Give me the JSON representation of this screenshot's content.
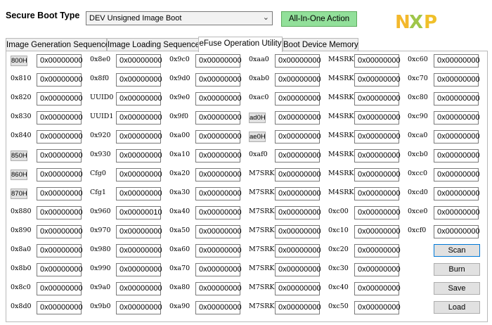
{
  "header": {
    "boot_type_label": "Secure Boot Type",
    "boot_type_value": "DEV Unsigned Image Boot",
    "action_button": "All-In-One Action",
    "logo_text": "NXP"
  },
  "tabs": [
    {
      "label": "Image Generation Sequence",
      "active": false
    },
    {
      "label": "Image Loading Sequence",
      "active": false
    },
    {
      "label": "eFuse Operation Utility",
      "active": true
    },
    {
      "label": "Boot Device Memory",
      "active": false
    }
  ],
  "columns": [
    {
      "rows": [
        {
          "label": "800H",
          "button": true,
          "value": "0x00000000"
        },
        {
          "label": "0x810",
          "button": false,
          "value": "0x00000000"
        },
        {
          "label": "0x820",
          "button": false,
          "value": "0x00000000"
        },
        {
          "label": "0x830",
          "button": false,
          "value": "0x00000000"
        },
        {
          "label": "0x840",
          "button": false,
          "value": "0x00000000"
        },
        {
          "label": "850H",
          "button": true,
          "value": "0x00000000"
        },
        {
          "label": "860H",
          "button": true,
          "value": "0x00000000"
        },
        {
          "label": "870H",
          "button": true,
          "value": "0x00000000"
        },
        {
          "label": "0x880",
          "button": false,
          "value": "0x00000000"
        },
        {
          "label": "0x890",
          "button": false,
          "value": "0x00000000"
        },
        {
          "label": "0x8a0",
          "button": false,
          "value": "0x00000000"
        },
        {
          "label": "0x8b0",
          "button": false,
          "value": "0x00000000"
        },
        {
          "label": "0x8c0",
          "button": false,
          "value": "0x00000000"
        },
        {
          "label": "0x8d0",
          "button": false,
          "value": "0x00000000"
        }
      ]
    },
    {
      "rows": [
        {
          "label": "0x8e0",
          "button": false,
          "value": "0x00000000"
        },
        {
          "label": "0x8f0",
          "button": false,
          "value": "0x00000000"
        },
        {
          "label": "UUID0",
          "button": false,
          "value": "0x00000000"
        },
        {
          "label": "UUID1",
          "button": false,
          "value": "0x00000000"
        },
        {
          "label": "0x920",
          "button": false,
          "value": "0x00000000"
        },
        {
          "label": "0x930",
          "button": false,
          "value": "0x00000000"
        },
        {
          "label": "Cfg0",
          "button": false,
          "value": "0x00000000"
        },
        {
          "label": "Cfg1",
          "button": false,
          "value": "0x00000000"
        },
        {
          "label": "0x960",
          "button": false,
          "value": "0x00000010"
        },
        {
          "label": "0x970",
          "button": false,
          "value": "0x00000000"
        },
        {
          "label": "0x980",
          "button": false,
          "value": "0x00000000"
        },
        {
          "label": "0x990",
          "button": false,
          "value": "0x00000000"
        },
        {
          "label": "0x9a0",
          "button": false,
          "value": "0x00000000"
        },
        {
          "label": "0x9b0",
          "button": false,
          "value": "0x00000000"
        }
      ]
    },
    {
      "rows": [
        {
          "label": "0x9c0",
          "button": false,
          "value": "0x00000000"
        },
        {
          "label": "0x9d0",
          "button": false,
          "value": "0x00000000"
        },
        {
          "label": "0x9e0",
          "button": false,
          "value": "0x00000000"
        },
        {
          "label": "0x9f0",
          "button": false,
          "value": "0x00000000"
        },
        {
          "label": "0xa00",
          "button": false,
          "value": "0x00000000"
        },
        {
          "label": "0xa10",
          "button": false,
          "value": "0x00000000"
        },
        {
          "label": "0xa20",
          "button": false,
          "value": "0x00000000"
        },
        {
          "label": "0xa30",
          "button": false,
          "value": "0x00000000"
        },
        {
          "label": "0xa40",
          "button": false,
          "value": "0x00000000"
        },
        {
          "label": "0xa50",
          "button": false,
          "value": "0x00000000"
        },
        {
          "label": "0xa60",
          "button": false,
          "value": "0x00000000"
        },
        {
          "label": "0xa70",
          "button": false,
          "value": "0x00000000"
        },
        {
          "label": "0xa80",
          "button": false,
          "value": "0x00000000"
        },
        {
          "label": "0xa90",
          "button": false,
          "value": "0x00000000"
        }
      ]
    },
    {
      "rows": [
        {
          "label": "0xaa0",
          "button": false,
          "value": "0x00000000"
        },
        {
          "label": "0xab0",
          "button": false,
          "value": "0x00000000"
        },
        {
          "label": "0xac0",
          "button": false,
          "value": "0x00000000"
        },
        {
          "label": "ad0H",
          "button": true,
          "value": "0x00000000"
        },
        {
          "label": "ae0H",
          "button": true,
          "value": "0x00000000"
        },
        {
          "label": "0xaf0",
          "button": false,
          "value": "0x00000000"
        },
        {
          "label": "M7SRK",
          "button": false,
          "value": "0x00000000"
        },
        {
          "label": "M7SRK",
          "button": false,
          "value": "0x00000000"
        },
        {
          "label": "M7SRK",
          "button": false,
          "value": "0x00000000"
        },
        {
          "label": "M7SRK",
          "button": false,
          "value": "0x00000000"
        },
        {
          "label": "M7SRK",
          "button": false,
          "value": "0x00000000"
        },
        {
          "label": "M7SRK",
          "button": false,
          "value": "0x00000000"
        },
        {
          "label": "M7SRK",
          "button": false,
          "value": "0x00000000"
        },
        {
          "label": "M7SRK",
          "button": false,
          "value": "0x00000000"
        }
      ]
    },
    {
      "rows": [
        {
          "label": "M4SRK",
          "button": false,
          "value": "0x00000000"
        },
        {
          "label": "M4SRK",
          "button": false,
          "value": "0x00000000"
        },
        {
          "label": "M4SRK",
          "button": false,
          "value": "0x00000000"
        },
        {
          "label": "M4SRK",
          "button": false,
          "value": "0x00000000"
        },
        {
          "label": "M4SRK",
          "button": false,
          "value": "0x00000000"
        },
        {
          "label": "M4SRK",
          "button": false,
          "value": "0x00000000"
        },
        {
          "label": "M4SRK",
          "button": false,
          "value": "0x00000000"
        },
        {
          "label": "M4SRK",
          "button": false,
          "value": "0x00000000"
        },
        {
          "label": "0xc00",
          "button": false,
          "value": "0x00000000"
        },
        {
          "label": "0xc10",
          "button": false,
          "value": "0x00000000"
        },
        {
          "label": "0xc20",
          "button": false,
          "value": "0x00000000"
        },
        {
          "label": "0xc30",
          "button": false,
          "value": "0x00000000"
        },
        {
          "label": "0xc40",
          "button": false,
          "value": "0x00000000"
        },
        {
          "label": "0xc50",
          "button": false,
          "value": "0x00000000"
        }
      ]
    },
    {
      "rows": [
        {
          "label": "0xc60",
          "button": false,
          "value": "0x00000000"
        },
        {
          "label": "0xc70",
          "button": false,
          "value": "0x00000000"
        },
        {
          "label": "0xc80",
          "button": false,
          "value": "0x00000000"
        },
        {
          "label": "0xc90",
          "button": false,
          "value": "0x00000000"
        },
        {
          "label": "0xca0",
          "button": false,
          "value": "0x00000000"
        },
        {
          "label": "0xcb0",
          "button": false,
          "value": "0x00000000"
        },
        {
          "label": "0xcc0",
          "button": false,
          "value": "0x00000000"
        },
        {
          "label": "0xcd0",
          "button": false,
          "value": "0x00000000"
        },
        {
          "label": "0xce0",
          "button": false,
          "value": "0x00000000"
        },
        {
          "label": "0xcf0",
          "button": false,
          "value": "0x00000000"
        }
      ]
    }
  ],
  "actions": {
    "scan": "Scan",
    "burn": "Burn",
    "save": "Save",
    "load": "Load"
  },
  "colors": {
    "action_button_bg": "#92e09a",
    "logo_n": "#f3b82c",
    "logo_x": "#9fc64a",
    "logo_p": "#f0c02a"
  }
}
